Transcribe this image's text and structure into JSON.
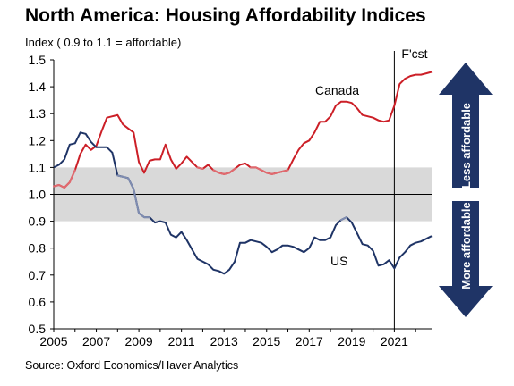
{
  "title": "North America: Housing Affordability Indices",
  "subtitle": "Index ( 0.9 to 1.1 = affordable)",
  "source": "Source: Oxford Economics/Haver Analytics",
  "chart_data": {
    "type": "line",
    "ylim": [
      0.5,
      1.5
    ],
    "xlim": [
      2005,
      2022.75
    ],
    "y_ticks": [
      "0.5",
      "0.6",
      "0.7",
      "0.8",
      "0.9",
      "1.0",
      "1.1",
      "1.2",
      "1.3",
      "1.4",
      "1.5"
    ],
    "x_ticks": [
      "2005",
      "2007",
      "2009",
      "2011",
      "2013",
      "2015",
      "2017",
      "2019",
      "2021"
    ],
    "affordable_band": [
      0.9,
      1.1
    ],
    "forecast_start": 2021,
    "forecast_label": "F'cst",
    "arrows": {
      "up_label": "Less affordable",
      "down_label": "More affordable",
      "color": "#1f3466"
    },
    "series": [
      {
        "name": "Canada",
        "color": "#cc1f27",
        "x": [
          2005,
          2005.25,
          2005.5,
          2005.75,
          2006,
          2006.25,
          2006.5,
          2006.75,
          2007,
          2007.25,
          2007.5,
          2007.75,
          2008,
          2008.25,
          2008.5,
          2008.75,
          2009,
          2009.25,
          2009.5,
          2009.75,
          2010,
          2010.25,
          2010.5,
          2010.75,
          2011,
          2011.25,
          2011.5,
          2011.75,
          2012,
          2012.25,
          2012.5,
          2012.75,
          2013,
          2013.25,
          2013.5,
          2013.75,
          2014,
          2014.25,
          2014.5,
          2014.75,
          2015,
          2015.25,
          2015.5,
          2015.75,
          2016,
          2016.25,
          2016.5,
          2016.75,
          2017,
          2017.25,
          2017.5,
          2017.75,
          2018,
          2018.25,
          2018.5,
          2018.75,
          2019,
          2019.25,
          2019.5,
          2019.75,
          2020,
          2020.25,
          2020.5,
          2020.75,
          2021,
          2021.25,
          2021.5,
          2021.75,
          2022,
          2022.25,
          2022.5,
          2022.75
        ],
        "values": [
          1.03,
          1.035,
          1.025,
          1.045,
          1.09,
          1.15,
          1.185,
          1.165,
          1.18,
          1.235,
          1.285,
          1.29,
          1.295,
          1.26,
          1.245,
          1.23,
          1.12,
          1.08,
          1.125,
          1.13,
          1.13,
          1.185,
          1.13,
          1.095,
          1.115,
          1.14,
          1.12,
          1.1,
          1.095,
          1.11,
          1.09,
          1.08,
          1.075,
          1.08,
          1.095,
          1.11,
          1.115,
          1.1,
          1.1,
          1.09,
          1.08,
          1.075,
          1.08,
          1.085,
          1.09,
          1.13,
          1.165,
          1.19,
          1.2,
          1.23,
          1.27,
          1.27,
          1.29,
          1.33,
          1.345,
          1.345,
          1.34,
          1.32,
          1.295,
          1.29,
          1.285,
          1.275,
          1.27,
          1.275,
          1.33,
          1.41,
          1.43,
          1.44,
          1.445,
          1.445,
          1.45,
          1.455
        ]
      },
      {
        "name": "US",
        "color": "#1f3466",
        "highlight_color": "#7f8cb0",
        "x": [
          2005,
          2005.25,
          2005.5,
          2005.75,
          2006,
          2006.25,
          2006.5,
          2006.75,
          2007,
          2007.25,
          2007.5,
          2007.75,
          2008,
          2008.25,
          2008.5,
          2008.75,
          2009,
          2009.25,
          2009.5,
          2009.75,
          2010,
          2010.25,
          2010.5,
          2010.75,
          2011,
          2011.25,
          2011.5,
          2011.75,
          2012,
          2012.25,
          2012.5,
          2012.75,
          2013,
          2013.25,
          2013.5,
          2013.75,
          2014,
          2014.25,
          2014.5,
          2014.75,
          2015,
          2015.25,
          2015.5,
          2015.75,
          2016,
          2016.25,
          2016.5,
          2016.75,
          2017,
          2017.25,
          2017.5,
          2017.75,
          2018,
          2018.25,
          2018.5,
          2018.75,
          2019,
          2019.25,
          2019.5,
          2019.75,
          2020,
          2020.25,
          2020.5,
          2020.75,
          2021,
          2021.25,
          2021.5,
          2021.75,
          2022,
          2022.25,
          2022.5,
          2022.75
        ],
        "values": [
          1.1,
          1.11,
          1.13,
          1.185,
          1.19,
          1.23,
          1.225,
          1.195,
          1.175,
          1.175,
          1.175,
          1.155,
          1.07,
          1.065,
          1.06,
          1.02,
          0.93,
          0.915,
          0.915,
          0.895,
          0.9,
          0.895,
          0.85,
          0.84,
          0.86,
          0.83,
          0.795,
          0.76,
          0.75,
          0.74,
          0.72,
          0.715,
          0.705,
          0.72,
          0.75,
          0.82,
          0.82,
          0.83,
          0.825,
          0.82,
          0.805,
          0.785,
          0.795,
          0.81,
          0.81,
          0.805,
          0.795,
          0.785,
          0.8,
          0.84,
          0.83,
          0.83,
          0.84,
          0.885,
          0.905,
          0.915,
          0.895,
          0.855,
          0.815,
          0.81,
          0.79,
          0.735,
          0.74,
          0.755,
          0.725,
          0.765,
          0.785,
          0.81,
          0.82,
          0.825,
          0.835,
          0.845
        ]
      }
    ]
  }
}
